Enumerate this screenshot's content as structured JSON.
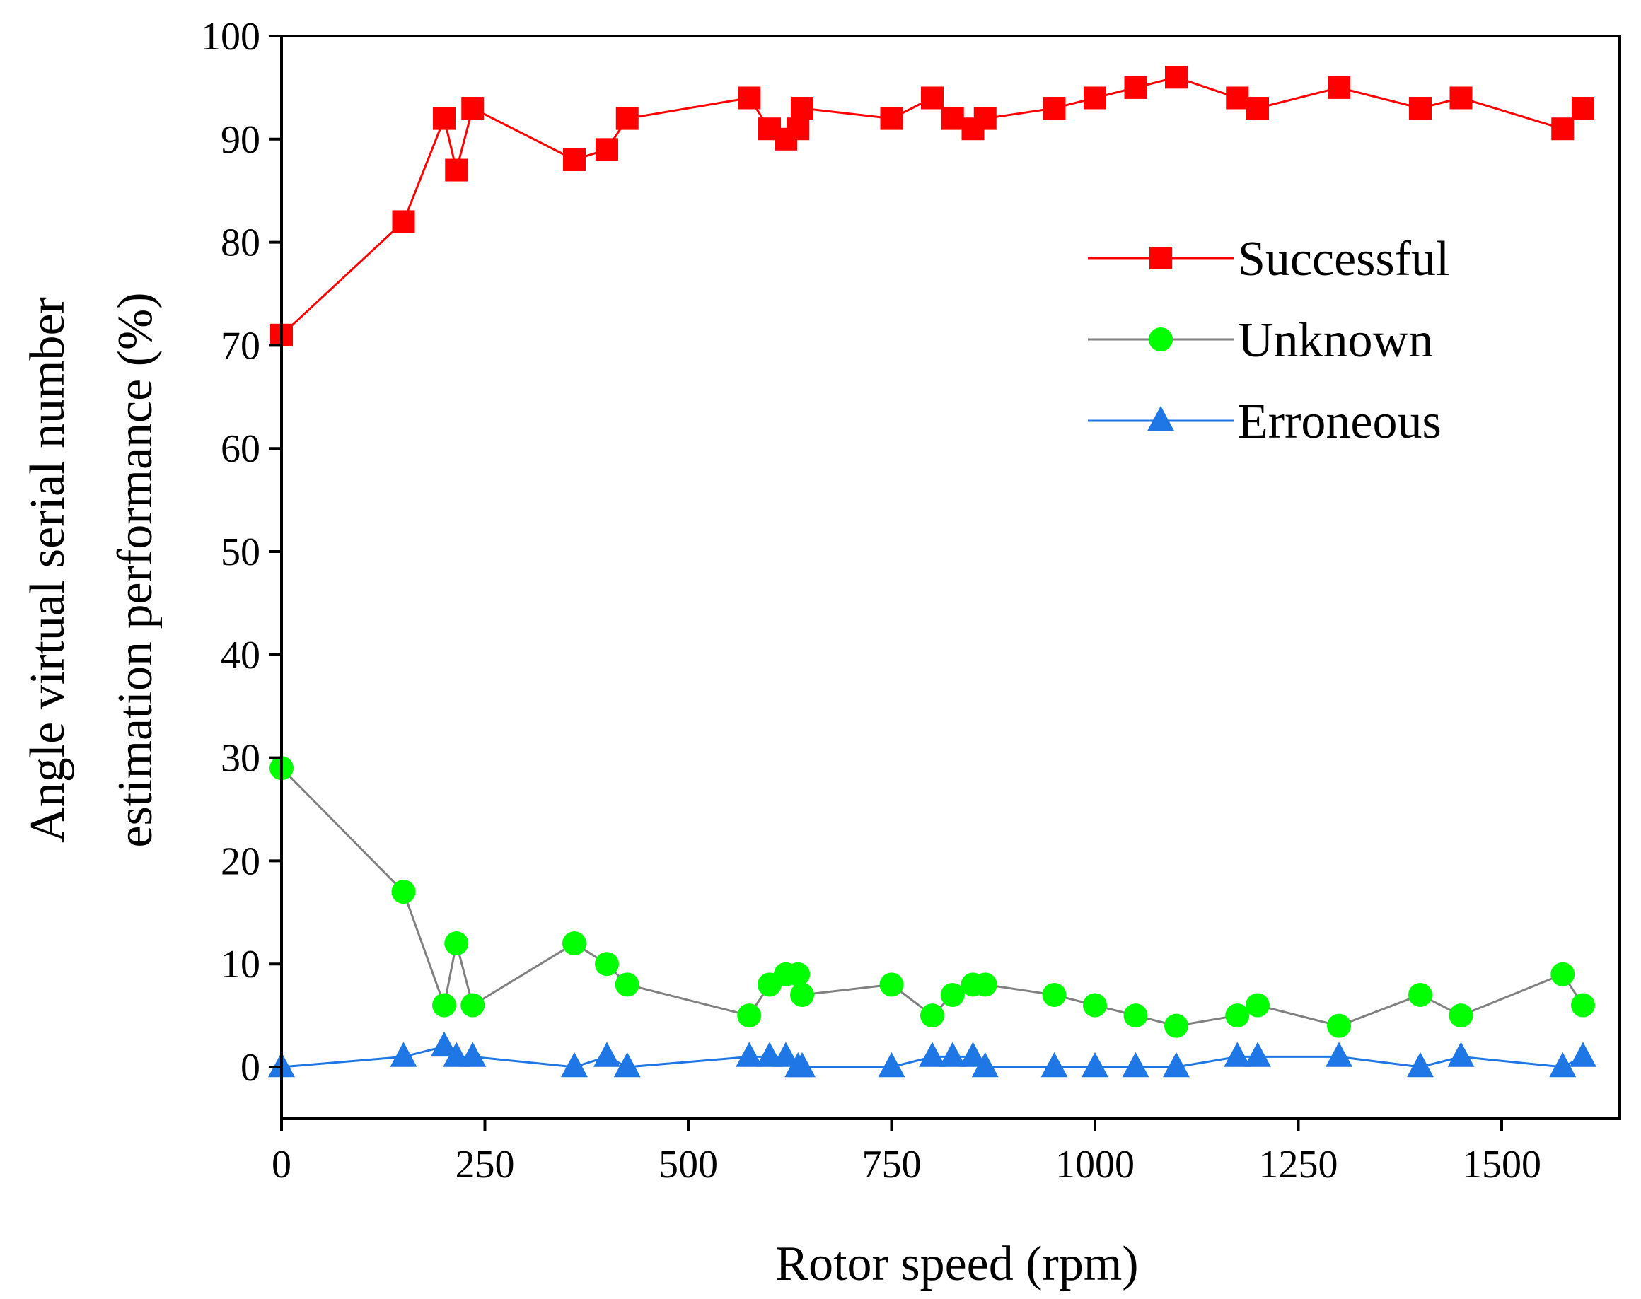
{
  "chart_data": {
    "type": "line",
    "title": "",
    "xlabel": "Rotor speed (rpm)",
    "ylabel_lines": [
      "Angle virtual serial number",
      "estimation performance (%)"
    ],
    "xlim": [
      -10,
      1620
    ],
    "ylim": [
      -5,
      100
    ],
    "xticks": [
      0,
      250,
      500,
      750,
      1000,
      1250,
      1500
    ],
    "yticks": [
      0,
      10,
      20,
      30,
      40,
      50,
      60,
      70,
      80,
      90,
      100
    ],
    "xtick_labels": [
      "0",
      "250",
      "500",
      "750",
      "1000",
      "1250",
      "1500"
    ],
    "ytick_labels": [
      "0",
      "10",
      "20",
      "30",
      "40",
      "50",
      "60",
      "70",
      "80",
      "90",
      "100"
    ],
    "legend_position": "top-right",
    "x": [
      0,
      150,
      200,
      215,
      235,
      360,
      400,
      425,
      575,
      600,
      620,
      635,
      640,
      750,
      800,
      825,
      850,
      865,
      950,
      1000,
      1050,
      1100,
      1175,
      1200,
      1300,
      1400,
      1450,
      1575,
      1600
    ],
    "series": [
      {
        "name": "Successful",
        "color": "#ff0000",
        "line_color": "#ff0000",
        "marker": "square",
        "values": [
          71,
          82,
          92,
          87,
          93,
          88,
          89,
          92,
          94,
          91,
          90,
          91,
          93,
          92,
          94,
          92,
          91,
          92,
          93,
          94,
          95,
          96,
          94,
          93,
          95,
          93,
          94,
          91,
          93
        ]
      },
      {
        "name": "Unknown",
        "color": "#00ff00",
        "line_color": "#808080",
        "marker": "circle",
        "values": [
          29,
          17,
          6,
          12,
          6,
          12,
          10,
          8,
          5,
          8,
          9,
          9,
          7,
          8,
          5,
          7,
          8,
          8,
          7,
          6,
          5,
          4,
          5,
          6,
          4,
          7,
          5,
          9,
          6
        ]
      },
      {
        "name": "Erroneous",
        "color": "#1f77e6",
        "line_color": "#1f77e6",
        "marker": "triangle",
        "values": [
          0,
          1,
          2,
          1,
          1,
          0,
          1,
          0,
          1,
          1,
          1,
          0,
          0,
          0,
          1,
          1,
          1,
          0,
          0,
          0,
          0,
          0,
          1,
          1,
          1,
          0,
          1,
          0,
          1
        ]
      }
    ]
  }
}
